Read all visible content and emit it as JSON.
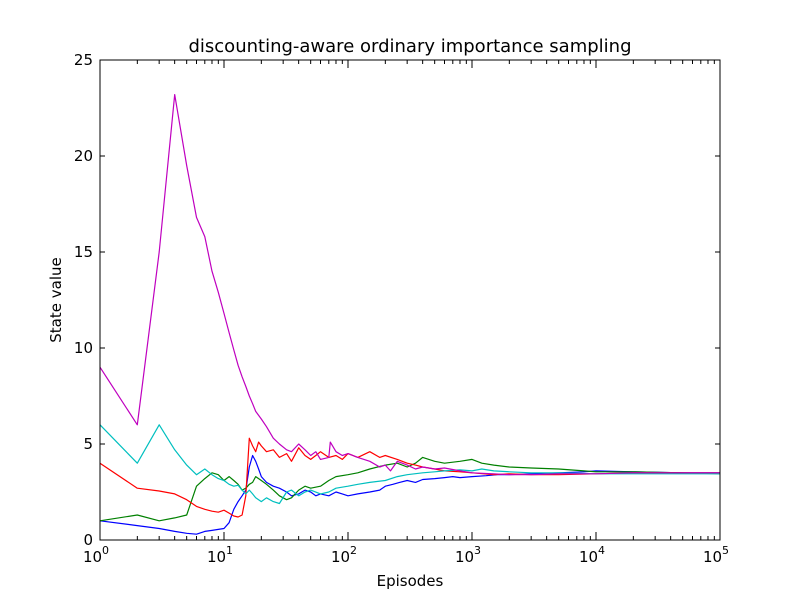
{
  "chart_data": {
    "type": "line",
    "title": "discounting-aware ordinary importance sampling",
    "xlabel": "Episodes",
    "ylabel": "State value",
    "x_scale": "log",
    "xlim": [
      1,
      100000
    ],
    "ylim": [
      0,
      25
    ],
    "x_ticks": [
      {
        "value": 1,
        "base": "10",
        "exp": "0"
      },
      {
        "value": 10,
        "base": "10",
        "exp": "1"
      },
      {
        "value": 100,
        "base": "10",
        "exp": "2"
      },
      {
        "value": 1000,
        "base": "10",
        "exp": "3"
      },
      {
        "value": 10000,
        "base": "10",
        "exp": "4"
      },
      {
        "value": 100000,
        "base": "10",
        "exp": "5"
      }
    ],
    "y_ticks": [
      0,
      5,
      10,
      15,
      20,
      25
    ],
    "grid": false,
    "legend": "none",
    "series": [
      {
        "color": "#0000ff",
        "x": [
          1,
          2,
          3,
          4,
          5,
          6,
          7,
          8,
          9,
          10,
          11,
          12,
          13,
          14,
          15,
          16,
          17,
          18,
          19,
          20,
          22,
          25,
          28,
          32,
          35,
          40,
          45,
          50,
          55,
          60,
          70,
          80,
          90,
          100,
          120,
          150,
          180,
          200,
          230,
          260,
          300,
          350,
          400,
          500,
          600,
          700,
          800,
          1000,
          1300,
          1600,
          2000,
          3000,
          5000,
          8000,
          10000,
          20000,
          50000,
          100000
        ],
        "y": [
          1.0,
          0.75,
          0.6,
          0.45,
          0.35,
          0.3,
          0.45,
          0.5,
          0.55,
          0.6,
          0.9,
          1.6,
          2.0,
          2.3,
          2.6,
          3.8,
          4.4,
          4.1,
          3.7,
          3.3,
          3.0,
          2.8,
          2.7,
          2.5,
          2.3,
          2.4,
          2.6,
          2.5,
          2.3,
          2.4,
          2.3,
          2.5,
          2.4,
          2.3,
          2.4,
          2.5,
          2.6,
          2.8,
          2.9,
          3.0,
          3.1,
          3.0,
          3.15,
          3.2,
          3.25,
          3.3,
          3.25,
          3.3,
          3.35,
          3.4,
          3.4,
          3.45,
          3.5,
          3.55,
          3.6,
          3.55,
          3.5,
          3.5
        ]
      },
      {
        "color": "#008000",
        "x": [
          1,
          2,
          3,
          4,
          5,
          6,
          7,
          8,
          9,
          10,
          11,
          12,
          13,
          14,
          15,
          16,
          17,
          18,
          20,
          22,
          25,
          28,
          32,
          35,
          40,
          45,
          50,
          60,
          70,
          80,
          100,
          120,
          150,
          200,
          250,
          300,
          350,
          400,
          500,
          600,
          800,
          1000,
          1200,
          1500,
          2000,
          3000,
          5000,
          8000,
          10000,
          20000,
          50000,
          100000
        ],
        "y": [
          1.0,
          1.3,
          1.0,
          1.15,
          1.3,
          2.8,
          3.2,
          3.5,
          3.4,
          3.1,
          3.3,
          3.1,
          2.9,
          2.6,
          2.7,
          2.9,
          3.0,
          3.3,
          3.1,
          2.9,
          2.6,
          2.3,
          2.1,
          2.2,
          2.6,
          2.8,
          2.7,
          2.8,
          3.1,
          3.3,
          3.4,
          3.5,
          3.7,
          3.9,
          4.0,
          3.8,
          4.0,
          4.3,
          4.1,
          4.0,
          4.1,
          4.2,
          4.0,
          3.9,
          3.8,
          3.75,
          3.7,
          3.6,
          3.55,
          3.55,
          3.5,
          3.45
        ]
      },
      {
        "color": "#ff0000",
        "x": [
          1,
          2,
          3,
          4,
          5,
          6,
          7,
          8,
          9,
          10,
          11,
          12,
          13,
          14,
          15,
          16,
          17,
          18,
          19,
          20,
          22,
          25,
          28,
          32,
          35,
          40,
          45,
          50,
          55,
          60,
          70,
          80,
          90,
          100,
          120,
          150,
          180,
          200,
          250,
          300,
          350,
          400,
          500,
          600,
          800,
          1000,
          1500,
          2000,
          3000,
          5000,
          10000,
          20000,
          50000,
          100000
        ],
        "y": [
          4.0,
          2.7,
          2.55,
          2.4,
          2.1,
          1.75,
          1.6,
          1.5,
          1.45,
          1.55,
          1.4,
          1.25,
          1.2,
          1.3,
          2.3,
          5.3,
          4.9,
          4.6,
          5.1,
          4.9,
          4.6,
          4.7,
          4.3,
          4.5,
          4.1,
          4.8,
          4.4,
          4.2,
          4.4,
          4.6,
          4.3,
          4.4,
          4.2,
          4.5,
          4.3,
          4.6,
          4.3,
          4.4,
          4.2,
          4.0,
          3.9,
          3.8,
          3.7,
          3.6,
          3.55,
          3.5,
          3.4,
          3.45,
          3.4,
          3.4,
          3.45,
          3.5,
          3.5,
          3.5
        ]
      },
      {
        "color": "#00bfbf",
        "x": [
          1,
          2,
          3,
          4,
          5,
          6,
          7,
          8,
          9,
          10,
          11,
          12,
          13,
          14,
          15,
          16,
          17,
          18,
          20,
          22,
          25,
          28,
          32,
          35,
          40,
          45,
          50,
          60,
          70,
          80,
          100,
          120,
          150,
          200,
          250,
          300,
          400,
          500,
          600,
          800,
          1000,
          1200,
          1500,
          2000,
          3000,
          5000,
          10000,
          20000,
          50000,
          100000
        ],
        "y": [
          6.0,
          4.0,
          6.0,
          4.7,
          3.9,
          3.4,
          3.7,
          3.4,
          3.2,
          3.1,
          2.9,
          2.8,
          2.85,
          2.6,
          2.4,
          2.6,
          2.4,
          2.2,
          2.0,
          2.2,
          2.0,
          1.9,
          2.5,
          2.6,
          2.3,
          2.5,
          2.6,
          2.4,
          2.5,
          2.7,
          2.8,
          2.9,
          3.0,
          3.1,
          3.3,
          3.4,
          3.5,
          3.55,
          3.6,
          3.65,
          3.6,
          3.7,
          3.6,
          3.55,
          3.5,
          3.5,
          3.45,
          3.45,
          3.45,
          3.45
        ]
      },
      {
        "color": "#bf00bf",
        "x": [
          1,
          2,
          3,
          4,
          5,
          6,
          7,
          8,
          9,
          10,
          11,
          12,
          13,
          14,
          15,
          16,
          17,
          18,
          20,
          22,
          25,
          28,
          32,
          35,
          40,
          45,
          50,
          55,
          60,
          70,
          72,
          80,
          90,
          100,
          120,
          150,
          180,
          200,
          220,
          250,
          300,
          350,
          400,
          500,
          600,
          800,
          1000,
          1500,
          2000,
          3000,
          5000,
          10000,
          20000,
          50000,
          100000
        ],
        "y": [
          9.0,
          6.0,
          15.0,
          23.2,
          19.5,
          16.8,
          15.8,
          14.0,
          12.9,
          11.8,
          10.8,
          9.9,
          9.1,
          8.5,
          8.0,
          7.5,
          7.1,
          6.7,
          6.3,
          5.9,
          5.3,
          5.0,
          4.7,
          4.6,
          5.0,
          4.7,
          4.4,
          4.6,
          4.2,
          4.3,
          5.1,
          4.6,
          4.4,
          4.5,
          4.3,
          4.1,
          3.8,
          3.9,
          3.6,
          4.1,
          3.9,
          3.7,
          3.8,
          3.7,
          3.75,
          3.6,
          3.5,
          3.45,
          3.4,
          3.4,
          3.45,
          3.45,
          3.5,
          3.5,
          3.5
        ]
      }
    ]
  }
}
